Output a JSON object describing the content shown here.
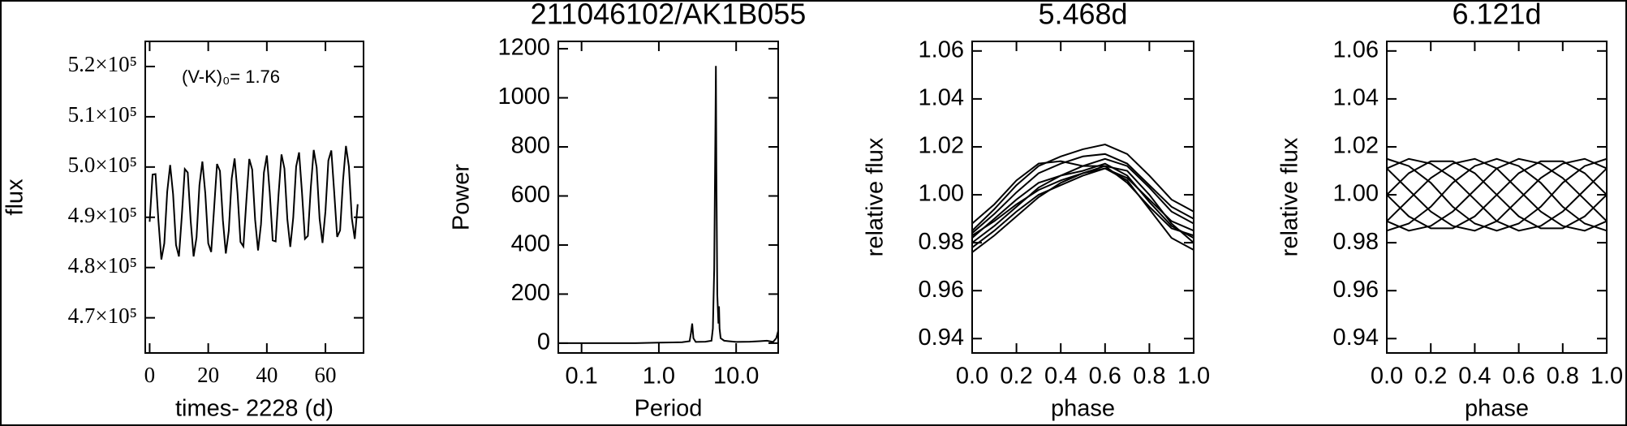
{
  "chart_data": [
    {
      "type": "line",
      "xlabel": "times- 2228 (d)",
      "ylabel": "flux",
      "annotation": "(V-K)₀= 1.76",
      "color": "#000000",
      "x": [
        0,
        1,
        2,
        3,
        4,
        5,
        6,
        7,
        8,
        9,
        10,
        11,
        12,
        13,
        14,
        15,
        16,
        17,
        18,
        19,
        20,
        21,
        22,
        23,
        24,
        25,
        26,
        27,
        28,
        29,
        30,
        31,
        32,
        33,
        34,
        35,
        36,
        37,
        38,
        39,
        40,
        41,
        42,
        43,
        44,
        45,
        46,
        47,
        48,
        49,
        50,
        51,
        52,
        53,
        54,
        55,
        56,
        57,
        58,
        59,
        60,
        61,
        62,
        63,
        64,
        65,
        66,
        67,
        68,
        69,
        70,
        71
      ],
      "values": [
        489100,
        498500,
        498600,
        489300,
        481600,
        484800,
        495100,
        500400,
        494600,
        484500,
        482200,
        490400,
        499600,
        498900,
        489300,
        482200,
        486000,
        496400,
        501100,
        494700,
        484800,
        483100,
        491800,
        500600,
        499200,
        489400,
        482800,
        487300,
        497700,
        501700,
        494800,
        485100,
        484200,
        493200,
        501600,
        499500,
        489500,
        483400,
        488600,
        498900,
        502300,
        494800,
        485400,
        485200,
        494600,
        502500,
        499700,
        489600,
        484100,
        489900,
        500100,
        502900,
        494900,
        485700,
        486300,
        495900,
        503400,
        499900,
        489700,
        484900,
        491200,
        501300,
        503300,
        494900,
        486100,
        487400,
        497300,
        504200,
        500100,
        489800,
        485700,
        492600
      ],
      "xlim": [
        -1.5,
        73
      ],
      "xticks": [
        0,
        20,
        40,
        60
      ],
      "ylim": [
        463000,
        525000
      ],
      "yticks": [
        {
          "value": 470000,
          "label": "4.7×10⁵"
        },
        {
          "value": 480000,
          "label": "4.8×10⁵"
        },
        {
          "value": 490000,
          "label": "4.9×10⁵"
        },
        {
          "value": 500000,
          "label": "5.0×10⁵"
        },
        {
          "value": 510000,
          "label": "5.1×10⁵"
        },
        {
          "value": 520000,
          "label": "5.2×10⁵"
        }
      ]
    },
    {
      "type": "line",
      "title": "211046102/AK1B055",
      "xlabel": "Period",
      "ylabel": "Power",
      "xlog": true,
      "color": "#000000",
      "x": [
        0.05,
        0.1,
        0.2,
        0.5,
        1,
        1.5,
        2,
        2.5,
        2.6,
        2.7,
        2.8,
        3,
        4,
        4.8,
        5.0,
        5.2,
        5.4,
        5.47,
        5.55,
        5.7,
        5.9,
        6.0,
        6.1,
        6.3,
        7,
        8,
        10,
        15,
        20,
        25,
        30,
        33,
        35
      ],
      "values": [
        0,
        0,
        0,
        0,
        2,
        3,
        4,
        8,
        40,
        80,
        20,
        5,
        6,
        10,
        60,
        300,
        900,
        1130,
        700,
        200,
        80,
        150,
        60,
        20,
        10,
        8,
        5,
        6,
        8,
        10,
        5,
        20,
        50
      ],
      "xlim": [
        0.05,
        35
      ],
      "xticks": [
        0.1,
        {
          "value": 1,
          "label": "1.0"
        },
        {
          "value": 10,
          "label": "10.0"
        }
      ],
      "ylim": [
        -40,
        1230
      ],
      "yticks": [
        0,
        200,
        400,
        600,
        800,
        1000,
        1200
      ]
    },
    {
      "type": "line",
      "title": "5.468d",
      "xlabel": "phase",
      "ylabel": "relative flux",
      "x": [
        0,
        0.1,
        0.2,
        0.3,
        0.4,
        0.5,
        0.6,
        0.7,
        0.8,
        0.9,
        1
      ],
      "series": [
        {
          "color": "#000000",
          "values": [
            0.982,
            0.99,
            0.998,
            1.005,
            1.008,
            1.01,
            1.013,
            1.008,
            0.997,
            0.987,
            0.982
          ]
        },
        {
          "color": "#000000",
          "values": [
            0.985,
            0.994,
            1.004,
            1.012,
            1.016,
            1.019,
            1.021,
            1.017,
            1.008,
            0.998,
            0.993
          ]
        },
        {
          "color": "#000000",
          "values": [
            0.978,
            0.985,
            0.993,
            1.0,
            1.004,
            1.008,
            1.011,
            1.006,
            0.994,
            0.982,
            0.977
          ]
        },
        {
          "color": "#000000",
          "values": [
            0.988,
            0.996,
            1.006,
            1.013,
            1.014,
            1.012,
            1.012,
            1.005,
            0.995,
            0.986,
            0.983
          ]
        },
        {
          "color": "#000000",
          "values": [
            0.98,
            0.987,
            0.995,
            1.003,
            1.008,
            1.012,
            1.015,
            1.012,
            1.003,
            0.993,
            0.988
          ]
        },
        {
          "color": "#000000",
          "values": [
            0.976,
            0.983,
            0.991,
            0.999,
            1.005,
            1.009,
            1.012,
            1.01,
            1.0,
            0.988,
            0.98
          ]
        },
        {
          "color": "#000000",
          "values": [
            0.984,
            0.992,
            1.001,
            1.009,
            1.013,
            1.016,
            1.017,
            1.013,
            1.004,
            0.995,
            0.99
          ]
        },
        {
          "color": "#000000",
          "values": [
            0.983,
            0.989,
            0.996,
            1.002,
            1.006,
            1.009,
            1.011,
            1.007,
            0.998,
            0.989,
            0.985
          ]
        }
      ],
      "xlim": [
        0,
        1
      ],
      "xticks": [
        {
          "value": 0,
          "label": "0.0"
        },
        0.2,
        0.4,
        0.6,
        0.8,
        {
          "value": 1,
          "label": "1.0"
        }
      ],
      "ylim": [
        0.934,
        1.064
      ],
      "yticks": [
        0.94,
        0.96,
        0.98,
        {
          "value": 1,
          "label": "1.00"
        },
        1.02,
        1.04,
        1.06
      ]
    },
    {
      "type": "line",
      "title": "6.121d",
      "xlabel": "phase",
      "ylabel": "relative flux",
      "x": [
        0,
        0.1,
        0.2,
        0.3,
        0.4,
        0.5,
        0.6,
        0.7,
        0.8,
        0.9,
        1
      ],
      "series": [
        {
          "color": "#000000",
          "values": [
            1.0,
            1.009,
            1.014,
            1.014,
            1.009,
            1.0,
            0.991,
            0.986,
            0.986,
            0.991,
            1.0
          ]
        },
        {
          "color": "#000000",
          "values": [
            1.011,
            1.015,
            1.013,
            1.007,
            0.998,
            0.989,
            0.985,
            0.987,
            0.993,
            1.002,
            1.011
          ]
        },
        {
          "color": "#000000",
          "values": [
            1.015,
            1.012,
            1.005,
            0.995,
            0.988,
            0.985,
            0.988,
            0.995,
            1.005,
            1.012,
            1.015
          ]
        },
        {
          "color": "#000000",
          "values": [
            1.011,
            1.002,
            0.993,
            0.987,
            0.985,
            0.989,
            0.998,
            1.007,
            1.013,
            1.015,
            1.011
          ]
        },
        {
          "color": "#000000",
          "values": [
            1.0,
            0.991,
            0.986,
            0.986,
            0.991,
            1.0,
            1.009,
            1.014,
            1.014,
            1.009,
            1.0
          ]
        },
        {
          "color": "#000000",
          "values": [
            0.989,
            0.985,
            0.987,
            0.993,
            1.002,
            1.011,
            1.015,
            1.013,
            1.007,
            0.998,
            0.989
          ]
        },
        {
          "color": "#000000",
          "values": [
            0.985,
            0.988,
            0.995,
            1.005,
            1.012,
            1.015,
            1.012,
            1.005,
            0.995,
            0.988,
            0.985
          ]
        },
        {
          "color": "#000000",
          "values": [
            0.989,
            0.998,
            1.007,
            1.013,
            1.015,
            1.011,
            1.002,
            0.993,
            0.987,
            0.985,
            0.989
          ]
        }
      ],
      "xlim": [
        0,
        1
      ],
      "xticks": [
        {
          "value": 0,
          "label": "0.0"
        },
        0.2,
        0.4,
        0.6,
        0.8,
        {
          "value": 1,
          "label": "1.0"
        }
      ],
      "ylim": [
        0.934,
        1.064
      ],
      "yticks": [
        0.94,
        0.96,
        0.98,
        {
          "value": 1,
          "label": "1.00"
        },
        1.02,
        1.04,
        1.06
      ]
    }
  ]
}
